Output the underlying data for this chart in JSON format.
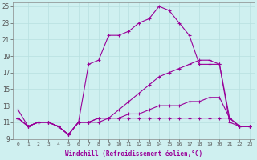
{
  "xlabel": "Windchill (Refroidissement éolien,°C)",
  "background_color": "#cff0f0",
  "line_color": "#990099",
  "grid_color": "#b8e0e0",
  "xlim": [
    -0.5,
    23.5
  ],
  "ylim": [
    9,
    25.5
  ],
  "yticks": [
    9,
    11,
    13,
    15,
    17,
    19,
    21,
    23,
    25
  ],
  "xticks": [
    0,
    1,
    2,
    3,
    4,
    5,
    6,
    7,
    8,
    9,
    10,
    11,
    12,
    13,
    14,
    15,
    16,
    17,
    18,
    19,
    20,
    21,
    22,
    23
  ],
  "line1_x": [
    0,
    1,
    2,
    3,
    4,
    5,
    6,
    7,
    8,
    9,
    10,
    11,
    12,
    13,
    14,
    15,
    16,
    17,
    18,
    19,
    20,
    21,
    22,
    23
  ],
  "line1_y": [
    12.5,
    10.5,
    11.0,
    11.0,
    10.5,
    9.5,
    11.0,
    18.0,
    18.5,
    21.5,
    21.5,
    22.0,
    23.0,
    23.5,
    25.0,
    24.5,
    23.0,
    21.5,
    18.0,
    18.0,
    18.0,
    11.5,
    10.5,
    10.5
  ],
  "line2_x": [
    0,
    1,
    2,
    3,
    4,
    5,
    6,
    7,
    8,
    9,
    10,
    11,
    12,
    13,
    14,
    15,
    16,
    17,
    18,
    19,
    20,
    21,
    22,
    23
  ],
  "line2_y": [
    11.5,
    10.5,
    11.0,
    11.0,
    10.5,
    9.5,
    11.0,
    11.0,
    11.5,
    11.5,
    12.5,
    13.5,
    14.5,
    15.5,
    16.5,
    17.0,
    17.5,
    18.0,
    18.5,
    18.5,
    18.0,
    11.0,
    10.5,
    10.5
  ],
  "line3_x": [
    0,
    1,
    2,
    3,
    4,
    5,
    6,
    7,
    8,
    9,
    10,
    11,
    12,
    13,
    14,
    15,
    16,
    17,
    18,
    19,
    20,
    21,
    22,
    23
  ],
  "line3_y": [
    11.5,
    10.5,
    11.0,
    11.0,
    10.5,
    9.5,
    11.0,
    11.0,
    11.0,
    11.5,
    11.5,
    12.0,
    12.0,
    12.5,
    13.0,
    13.0,
    13.0,
    13.5,
    13.5,
    14.0,
    14.0,
    11.5,
    10.5,
    10.5
  ],
  "line4_x": [
    0,
    1,
    2,
    3,
    4,
    5,
    6,
    7,
    8,
    9,
    10,
    11,
    12,
    13,
    14,
    15,
    16,
    17,
    18,
    19,
    20,
    21,
    22,
    23
  ],
  "line4_y": [
    11.5,
    10.5,
    11.0,
    11.0,
    10.5,
    9.5,
    11.0,
    11.0,
    11.5,
    11.5,
    11.5,
    11.5,
    11.5,
    11.5,
    11.5,
    11.5,
    11.5,
    11.5,
    11.5,
    11.5,
    11.5,
    11.5,
    10.5,
    10.5
  ]
}
